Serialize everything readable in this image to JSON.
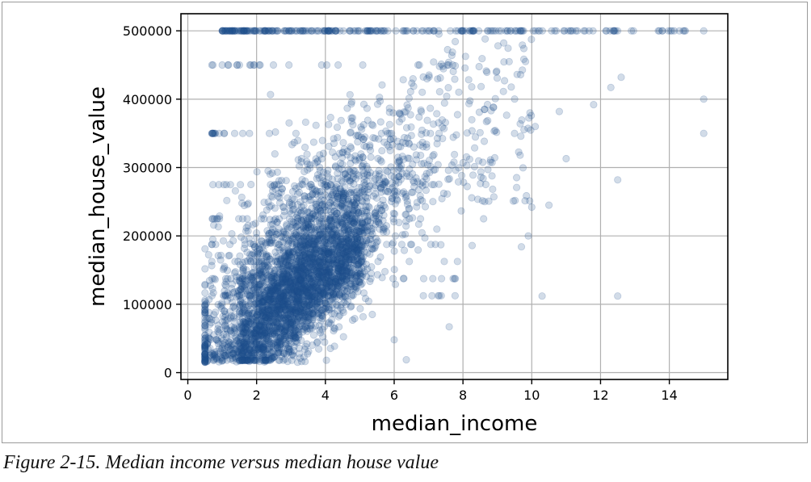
{
  "figure": {
    "caption": "Figure 2-15. Median income versus median house value"
  },
  "chart_data": {
    "type": "scatter",
    "xlabel": "median_income",
    "ylabel": "median_house_value",
    "xlim": [
      -0.2,
      15.7
    ],
    "ylim": [
      -10000,
      525000
    ],
    "xticks": [
      0,
      2,
      4,
      6,
      8,
      10,
      12,
      14
    ],
    "yticks": [
      0,
      100000,
      200000,
      300000,
      400000,
      500000
    ],
    "grid": true,
    "marker_color": "#1f4e8c",
    "marker_alpha": 0.2,
    "cap_value": 500000,
    "cluster_description_points": [
      {
        "x": 0.5,
        "y": 15000
      },
      {
        "x": 1.5,
        "y": 60000
      },
      {
        "x": 2.5,
        "y": 110000
      },
      {
        "x": 3.5,
        "y": 160000
      },
      {
        "x": 4.5,
        "y": 210000
      },
      {
        "x": 5.5,
        "y": 270000
      },
      {
        "x": 6.5,
        "y": 330000
      },
      {
        "x": 7.5,
        "y": 380000
      }
    ],
    "outlier_points": [
      {
        "x": 15.0,
        "y": 500000
      },
      {
        "x": 15.0,
        "y": 400000
      },
      {
        "x": 15.0,
        "y": 350000
      },
      {
        "x": 12.5,
        "y": 112000
      },
      {
        "x": 12.5,
        "y": 282000
      },
      {
        "x": 12.3,
        "y": 417000
      },
      {
        "x": 12.6,
        "y": 432000
      },
      {
        "x": 11.0,
        "y": 313000
      },
      {
        "x": 10.5,
        "y": 245000
      },
      {
        "x": 10.0,
        "y": 242000
      },
      {
        "x": 10.3,
        "y": 112000
      },
      {
        "x": 9.9,
        "y": 200000
      },
      {
        "x": 9.7,
        "y": 184000
      },
      {
        "x": 8.6,
        "y": 225000
      },
      {
        "x": 7.6,
        "y": 67000
      },
      {
        "x": 6.0,
        "y": 48000
      },
      {
        "x": 0.8,
        "y": 350000
      },
      {
        "x": 1.0,
        "y": 450000
      },
      {
        "x": 1.5,
        "y": 450000
      },
      {
        "x": 1.8,
        "y": 450000
      },
      {
        "x": 11.8,
        "y": 392000
      },
      {
        "x": 10.8,
        "y": 382000
      },
      {
        "x": 9.5,
        "y": 350000
      },
      {
        "x": 10.1,
        "y": 360000
      }
    ]
  }
}
